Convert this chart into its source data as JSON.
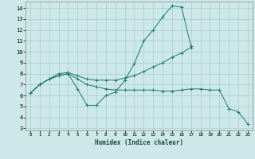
{
  "xlabel": "Humidex (Indice chaleur)",
  "bg_color": "#cce8e8",
  "grid_color": "#aacccc",
  "line_color": "#1a7a6e",
  "xlim": [
    -0.5,
    23.5
  ],
  "ylim": [
    2.8,
    14.6
  ],
  "yticks": [
    3,
    4,
    5,
    6,
    7,
    8,
    9,
    10,
    11,
    12,
    13,
    14
  ],
  "xticks": [
    0,
    1,
    2,
    3,
    4,
    5,
    6,
    7,
    8,
    9,
    10,
    11,
    12,
    13,
    14,
    15,
    16,
    17,
    18,
    19,
    20,
    21,
    22,
    23
  ],
  "line1_x": [
    0,
    1,
    2,
    3,
    4,
    5,
    6,
    7,
    8,
    9,
    10,
    11,
    12,
    13,
    14,
    15,
    16,
    17
  ],
  "line1_y": [
    6.2,
    7.0,
    7.5,
    7.8,
    8.0,
    6.6,
    5.1,
    5.1,
    6.0,
    6.3,
    7.4,
    8.9,
    11.0,
    12.0,
    13.2,
    14.2,
    14.1,
    10.5
  ],
  "line2_x": [
    0,
    1,
    2,
    3,
    4,
    5,
    6,
    7,
    8,
    9,
    10,
    11,
    12,
    13,
    14,
    15,
    16,
    17
  ],
  "line2_y": [
    6.2,
    7.0,
    7.5,
    8.0,
    8.1,
    7.8,
    7.5,
    7.4,
    7.4,
    7.4,
    7.6,
    7.8,
    8.2,
    8.6,
    9.0,
    9.5,
    9.9,
    10.4
  ],
  "line3_x": [
    0,
    1,
    2,
    3,
    4,
    5,
    6,
    7,
    8,
    9,
    10,
    11,
    12,
    13,
    14,
    15,
    16,
    17,
    18,
    19,
    20,
    21,
    22,
    23
  ],
  "line3_y": [
    6.2,
    7.0,
    7.5,
    7.8,
    8.0,
    7.5,
    7.0,
    6.8,
    6.6,
    6.5,
    6.5,
    6.5,
    6.5,
    6.5,
    6.4,
    6.4,
    6.5,
    6.6,
    6.6,
    6.5,
    6.5,
    4.8,
    4.5,
    3.4
  ]
}
